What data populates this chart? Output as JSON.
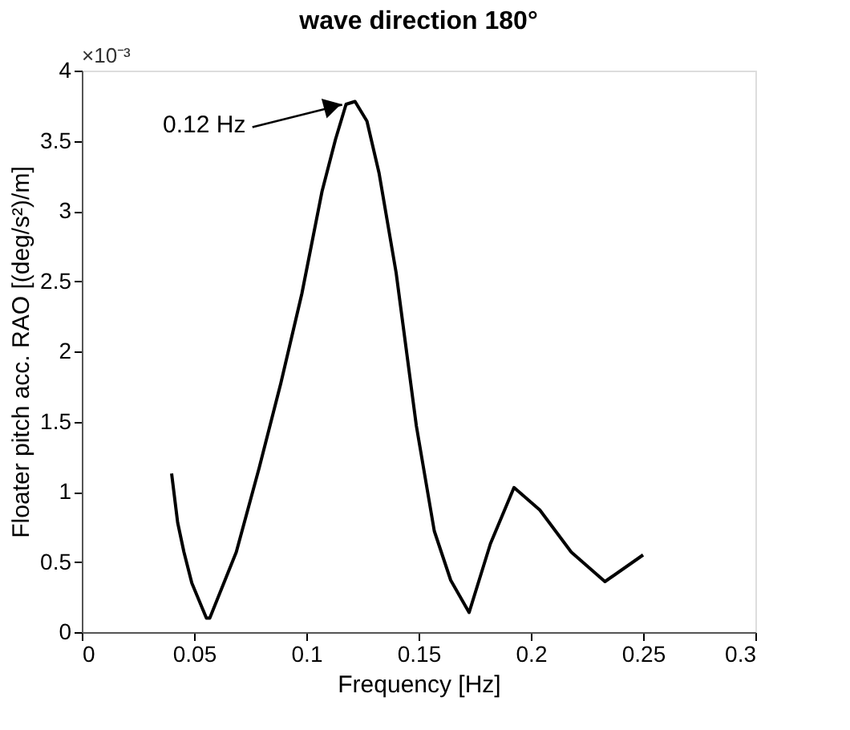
{
  "chart_data": {
    "type": "line",
    "title": "wave direction 180°",
    "xlabel": "Frequency [Hz]",
    "ylabel": "Floater pitch acc. RAO [(deg/s²)/m]",
    "x": [
      0.04,
      0.0427,
      0.0455,
      0.049,
      0.0555,
      0.057,
      0.0688,
      0.079,
      0.0886,
      0.098,
      0.107,
      0.113,
      0.1177,
      0.1217,
      0.127,
      0.1324,
      0.14,
      0.149,
      0.157,
      0.1643,
      0.1725,
      0.182,
      0.1925,
      0.204,
      0.218,
      0.233,
      0.25
    ],
    "series": [
      {
        "color": "#000000",
        "values": [
          1.13,
          0.78,
          0.57,
          0.35,
          0.1,
          0.1,
          0.57,
          1.17,
          1.77,
          2.41,
          3.14,
          3.51,
          3.76,
          3.78,
          3.64,
          3.27,
          2.56,
          1.47,
          0.72,
          0.37,
          0.14,
          0.63,
          1.03,
          0.87,
          0.57,
          0.36,
          0.55
        ]
      }
    ],
    "xlim": [
      0,
      0.3
    ],
    "xticks": [
      0,
      0.05,
      0.1,
      0.15,
      0.2,
      0.25,
      0.3
    ],
    "ylim": [
      0,
      4
    ],
    "yticks": [
      0,
      0.5,
      1,
      1.5,
      2,
      2.5,
      3,
      3.5,
      4
    ],
    "grid": false,
    "marker": "none",
    "line_style": "solid",
    "annotations": [
      "×10⁻³",
      {
        "text": "0.12 Hz",
        "x": 0.1217,
        "y": 3.78
      }
    ]
  }
}
